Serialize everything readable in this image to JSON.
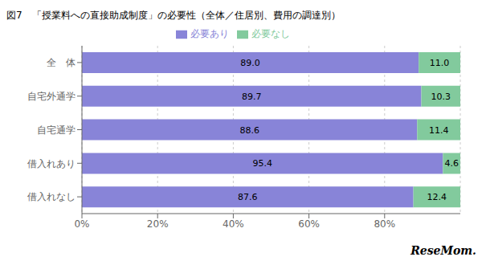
{
  "chart_data": {
    "type": "bar",
    "title": "図7　「授業料への直接助成制度」の必要性（全体／住居別、費用の調達別）",
    "orientation": "horizontal",
    "stacked": true,
    "data_labels": true,
    "grid": true,
    "legend": "top",
    "categories": [
      "全　体",
      "自宅外通学",
      "自宅通学",
      "借入れあり",
      "借入れなし"
    ],
    "series": [
      {
        "name": "必要あり",
        "color": "#8884d8",
        "values": [
          89.0,
          89.7,
          88.6,
          95.4,
          87.6
        ],
        "value_labels": [
          "89.0",
          "89.7",
          "88.6",
          "95.4",
          "87.6"
        ]
      },
      {
        "name": "必要なし",
        "color": "#82ca9d",
        "values": [
          11.0,
          10.3,
          11.4,
          4.6,
          12.4
        ],
        "value_labels": [
          "11.0",
          "10.3",
          "11.4",
          "4.6",
          "12.4"
        ]
      }
    ],
    "xlim": [
      0,
      100
    ],
    "xticks": [
      {
        "value": 0,
        "label": "0%"
      },
      {
        "value": 20,
        "label": "20%"
      },
      {
        "value": 40,
        "label": "40%"
      },
      {
        "value": 60,
        "label": "60%"
      },
      {
        "value": 80,
        "label": "80%"
      }
    ],
    "annotations": [
      "ReseMom."
    ]
  }
}
